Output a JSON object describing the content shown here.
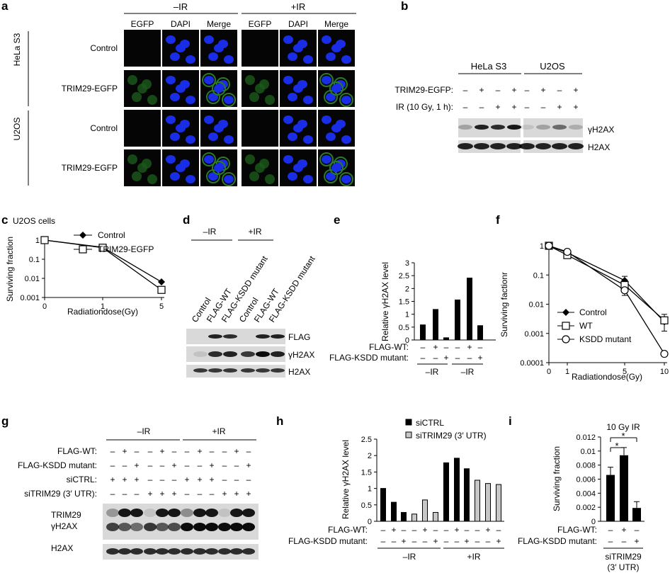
{
  "panel_letters": {
    "a": "a",
    "b": "b",
    "c": "c",
    "d": "d",
    "e": "e",
    "f": "f",
    "g": "g",
    "h": "h",
    "i": "i"
  },
  "panel_a": {
    "groups": [
      "–IR",
      "+IR"
    ],
    "channels": [
      "EGFP",
      "DAPI",
      "Merge",
      "EGFP",
      "DAPI",
      "Merge"
    ],
    "cell_lines": [
      "HeLa S3",
      "U2OS"
    ],
    "rows": [
      "Control",
      "TRIM29-EGFP",
      "Control",
      "TRIM29-EGFP"
    ]
  },
  "panel_b": {
    "groups": [
      "HeLa S3",
      "U2OS"
    ],
    "row_labels": [
      "TRIM29-EGFP:",
      "IR (10 Gy, 1 h):"
    ],
    "trim29": [
      "–",
      "+",
      "–",
      "+",
      "–",
      "+",
      "–",
      "+"
    ],
    "ir": [
      "–",
      "–",
      "+",
      "+",
      "–",
      "–",
      "+",
      "+"
    ],
    "blots": [
      "γH2AX",
      "H2AX"
    ]
  },
  "panel_c": {
    "title_label": "U2OS cells",
    "chart_data": {
      "type": "line",
      "xlabel": "Radiationdose(Gy)",
      "ylabel": "Surviving fraction",
      "yscale": "log",
      "ylim": [
        0.001,
        1
      ],
      "xticks": [
        "0",
        "1",
        "5"
      ],
      "yticks": [
        "0.001",
        "0.01",
        "0.1",
        "1"
      ],
      "legend_position": "top-right",
      "series": [
        {
          "name": "Control",
          "x": [
            0,
            1,
            5
          ],
          "y": [
            1,
            0.42,
            0.0065
          ],
          "marker": "diamond"
        },
        {
          "name": "TRIM29-EGFP",
          "x": [
            0,
            1,
            5
          ],
          "y": [
            1,
            0.4,
            0.0025
          ],
          "marker": "open-square"
        }
      ]
    }
  },
  "panel_d": {
    "groups": [
      "–IR",
      "+IR"
    ],
    "lanes": [
      "Control",
      "FLAG-WT",
      "FLAG-KSDD mutant",
      "Control",
      "FLAG-WT",
      "FLAG-KSDD mutant"
    ],
    "blots": [
      "FLAG",
      "γH2AX",
      "H2AX"
    ]
  },
  "panel_e": {
    "chart_data": {
      "type": "bar",
      "ylabel": "Relative γH2AX level",
      "ylim": [
        0,
        3
      ],
      "yticks": [
        "0",
        "0.5",
        "1",
        "1.5",
        "2",
        "2.5",
        "3"
      ],
      "values": [
        0.6,
        1.2,
        0.1,
        1.57,
        2.42,
        0.57
      ],
      "row_labels": [
        "FLAG-WT:",
        "FLAG-KSDD mutant:"
      ],
      "flag_wt": [
        "–",
        "+",
        "–",
        "–",
        "+",
        "–"
      ],
      "flag_ksdd": [
        "–",
        "–",
        "+",
        "–",
        "–",
        "+"
      ],
      "groups": [
        "–IR",
        "–IR"
      ]
    }
  },
  "panel_f": {
    "chart_data": {
      "type": "line",
      "xlabel": "Radiationdose(Gy)",
      "ylabel": "Surviving factionr",
      "yscale": "log",
      "ylim": [
        0.0001,
        1
      ],
      "xticks": [
        "0",
        "1",
        "5",
        "10"
      ],
      "yticks": [
        "0.0001",
        "0.001",
        "0.01",
        "0.1",
        "1"
      ],
      "legend_position": "bottom-left",
      "series": [
        {
          "name": "Control",
          "x": [
            0,
            1,
            5,
            10
          ],
          "y": [
            1,
            0.58,
            0.065,
            0.0025
          ],
          "marker": "diamond"
        },
        {
          "name": "WT",
          "x": [
            0,
            1,
            5,
            10
          ],
          "y": [
            1,
            0.48,
            0.045,
            0.0028
          ],
          "marker": "open-square"
        },
        {
          "name": "KSDD mutant",
          "x": [
            0,
            1,
            5,
            10
          ],
          "y": [
            1,
            0.62,
            0.03,
            0.0002
          ],
          "marker": "open-circle"
        }
      ]
    }
  },
  "panel_g": {
    "groups": [
      "–IR",
      "+IR"
    ],
    "row_labels": [
      "FLAG-WT:",
      "FLAG-KSDD mutant:",
      "siCTRL:",
      "siTRIM29 (3′ UTR):"
    ],
    "flag_wt": [
      "–",
      "+",
      "–",
      "–",
      "+",
      "–",
      "–",
      "+",
      "–",
      "–",
      "+",
      "–"
    ],
    "flag_ksdd": [
      "–",
      "–",
      "+",
      "–",
      "–",
      "+",
      "–",
      "–",
      "+",
      "–",
      "–",
      "+"
    ],
    "sictrl": [
      "+",
      "+",
      "+",
      "–",
      "–",
      "–",
      "+",
      "+",
      "+",
      "–",
      "–",
      "–"
    ],
    "sitrim": [
      "–",
      "–",
      "–",
      "+",
      "+",
      "+",
      "–",
      "–",
      "–",
      "+",
      "+",
      "+"
    ],
    "blots": [
      "TRIM29",
      "γH2AX",
      "H2AX"
    ]
  },
  "panel_h": {
    "chart_data": {
      "type": "bar",
      "ylabel": "Relative γH2AX level",
      "ylim": [
        0,
        2.5
      ],
      "yticks": [
        "0",
        "0.5",
        "1",
        "1.5",
        "2",
        "2.5"
      ],
      "legend_position": "top-right",
      "series": [
        {
          "name": "siCTRL",
          "color": "#000000"
        },
        {
          "name": "siTRIM29 (3′ UTR)",
          "color": "#c8c8c8"
        }
      ],
      "values": [
        1.0,
        0.58,
        0.27,
        0.22,
        0.65,
        0.27,
        1.78,
        1.92,
        1.6,
        1.25,
        1.15,
        1.12
      ],
      "bar_series": [
        0,
        0,
        0,
        1,
        1,
        1,
        0,
        0,
        0,
        1,
        1,
        1
      ],
      "row_labels": [
        "FLAG-WT:",
        "FLAG-KSDD mutant:"
      ],
      "flag_wt": [
        "–",
        "+",
        "–",
        "–",
        "+",
        "–",
        "–",
        "+",
        "–",
        "–",
        "+",
        "–"
      ],
      "flag_ksdd": [
        "–",
        "–",
        "+",
        "–",
        "–",
        "+",
        "–",
        "–",
        "+",
        "–",
        "–",
        "+"
      ],
      "groups": [
        "–IR",
        "+IR"
      ]
    }
  },
  "panel_i": {
    "chart_data": {
      "type": "bar",
      "title": "10 Gy IR",
      "ylabel": "Surviving fraction",
      "ylim": [
        0,
        0.012
      ],
      "yticks": [
        "0",
        "0.002",
        "0.004",
        "0.006",
        "0.008",
        "0.01",
        "0.012"
      ],
      "values": [
        0.0066,
        0.0094,
        0.0019
      ],
      "errors": [
        0.0011,
        0.0011,
        0.0009
      ],
      "row_labels": [
        "FLAG-WT:",
        "FLAG-KSDD mutant:"
      ],
      "flag_wt": [
        "–",
        "+",
        "–"
      ],
      "flag_ksdd": [
        "–",
        "–",
        "+"
      ],
      "significance": [
        "*",
        "*"
      ],
      "group_label_lines": [
        "siTRIM29",
        "(3′ UTR)"
      ]
    }
  }
}
